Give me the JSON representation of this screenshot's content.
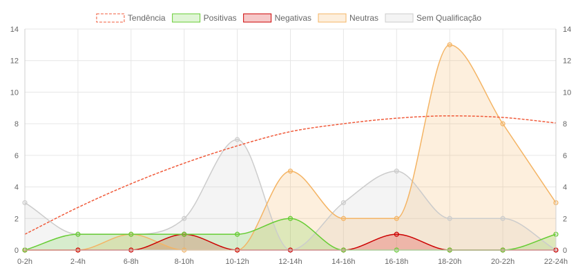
{
  "chart_data": {
    "type": "line",
    "title": "",
    "xlabel": "",
    "ylabel": "",
    "ylim": [
      0,
      14
    ],
    "y_ticks": [
      0,
      2,
      4,
      6,
      8,
      10,
      12,
      14
    ],
    "y_axis_right": true,
    "grid": true,
    "legend_position": "top",
    "categories": [
      "0-2h",
      "2-4h",
      "6-8h",
      "8-10h",
      "10-12h",
      "12-14h",
      "14-16h",
      "16-18h",
      "18-20h",
      "20-22h",
      "22-24h"
    ],
    "series": [
      {
        "name": "Tendência",
        "style": "dashed",
        "color": "#f05a3a",
        "fill": "none",
        "values": [
          1,
          2.7,
          4.2,
          5.5,
          6.6,
          7.5,
          8.0,
          8.35,
          8.5,
          8.4,
          8.05
        ]
      },
      {
        "name": "Positivas",
        "color": "#66cc33",
        "fill": "rgba(102,204,51,0.20)",
        "values": [
          0,
          1,
          1,
          1,
          1,
          2,
          0,
          0,
          0,
          0,
          1
        ]
      },
      {
        "name": "Negativas",
        "color": "#cc0000",
        "fill": "rgba(220,40,40,0.25)",
        "values": [
          0,
          0,
          0,
          1,
          0,
          0,
          0,
          1,
          0,
          0,
          0
        ]
      },
      {
        "name": "Neutras",
        "color": "#f4b464",
        "fill": "rgba(244,180,100,0.22)",
        "values": [
          0,
          0,
          1,
          0,
          0,
          5,
          2,
          2,
          13,
          8,
          3
        ]
      },
      {
        "name": "Sem Qualificação",
        "color": "#cccccc",
        "fill": "rgba(200,200,200,0.20)",
        "values": [
          3,
          1,
          1,
          2,
          7,
          0,
          3,
          5,
          2,
          2,
          0
        ]
      }
    ]
  }
}
